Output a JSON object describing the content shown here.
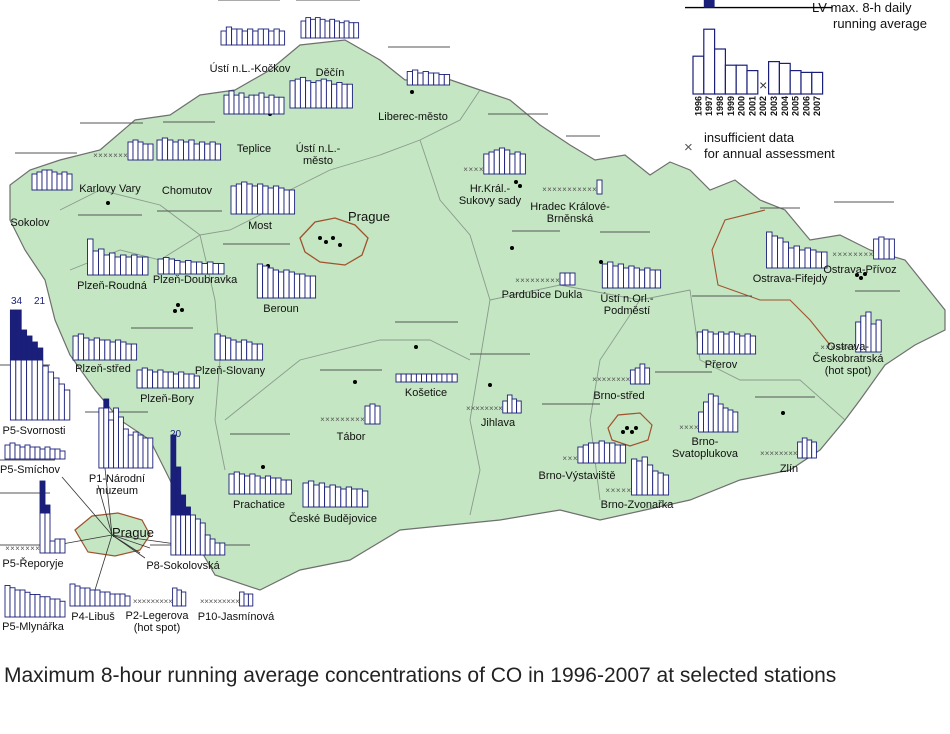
{
  "colors": {
    "land": "#c4e6c2",
    "region_border": "#8a9b8e",
    "country_border": "#6f6f6f",
    "prague_border": "#a0522d",
    "bar_outline": "#1a1f7a",
    "bar_fill_exceed": "#1a1f7a",
    "limit_line": "#000000",
    "station_dot": "#000000"
  },
  "legend": {
    "lv_label_line1": "LV max. 8-h daily",
    "lv_label_line2": "running average",
    "years": [
      "1996",
      "1997",
      "1998",
      "1999",
      "2000",
      "2001",
      "2002",
      "2003",
      "2004",
      "2005",
      "2006",
      "2007"
    ],
    "values": [
      1.05,
      1.8,
      1.25,
      0.8,
      0.8,
      0.65,
      0,
      0.9,
      0.85,
      0.65,
      0.6,
      0.6
    ],
    "insufficient_marker": "×",
    "insufficient_line1": "insufficient data",
    "insufficient_line2": "for annual assessment"
  },
  "prague_label": "Prague",
  "prague_inset_label": "Prague",
  "top_labels": {
    "exceed_34": "34",
    "exceed_21": "21",
    "exceed_20": "20"
  },
  "caption": "Maximum 8-hour running average concentrations of CO in 1996-2007 at selected stations",
  "chart_data": [
    {
      "type": "bar",
      "name": "Ústí n.L.-Kočkov",
      "categories": [
        "1996",
        "1997",
        "1998",
        "1999",
        "2000",
        "2001",
        "2002",
        "2003",
        "2004",
        "2005",
        "2006",
        "2007"
      ],
      "values": [
        0.35,
        0.45,
        0.4,
        0.4,
        0.35,
        0.4,
        0.35,
        0.4,
        0.4,
        0.35,
        0.4,
        0.35
      ]
    },
    {
      "type": "bar",
      "name": "Děčín",
      "values": [
        0.5,
        0.6,
        0.55,
        0.6,
        0.55,
        0.5,
        0.55,
        0.5,
        0.45,
        0.5,
        0.45,
        0.45
      ]
    },
    {
      "type": "bar",
      "name": "Liberec-město",
      "values": [
        0,
        0,
        0,
        0,
        0.45,
        0.5,
        0.4,
        0.45,
        0.4,
        0.4,
        0.35,
        0.35
      ]
    },
    {
      "type": "bar",
      "name": "Teplice",
      "values": [
        0.45,
        0.55,
        0.45,
        0.5,
        0.4,
        0.45,
        0.45,
        0.5,
        0.4,
        0.45,
        0.4,
        0.4
      ]
    },
    {
      "type": "bar",
      "name": "Ústí n.L.-město",
      "values": [
        0.8,
        0.85,
        0.9,
        0.8,
        0.75,
        0.8,
        0.85,
        0.8,
        0.7,
        0.75,
        0.7,
        0.7
      ]
    },
    {
      "type": "bar",
      "name": "Karlovy Vary",
      "values": [
        null,
        null,
        null,
        null,
        null,
        null,
        null,
        0.45,
        0.5,
        0.45,
        0.4,
        0.4
      ]
    },
    {
      "type": "bar",
      "name": "Chomutov",
      "values": [
        0.5,
        0.55,
        0.5,
        0.45,
        0.5,
        0.45,
        0.5,
        0.4,
        0.45,
        0.4,
        0.45,
        0.4
      ]
    },
    {
      "type": "bar",
      "name": "Sokolov",
      "values": [
        0,
        0,
        0,
        0,
        0.4,
        0.45,
        0.5,
        0.5,
        0.45,
        0.4,
        0.45,
        0.4
      ]
    },
    {
      "type": "bar",
      "name": "Most",
      "values": [
        0.7,
        0.75,
        0.8,
        0.75,
        0.7,
        0.75,
        0.7,
        0.65,
        0.7,
        0.65,
        0.6,
        0.6
      ]
    },
    {
      "type": "bar",
      "name": "Hr.Král.-Sukovy sady",
      "values": [
        null,
        null,
        null,
        null,
        0.5,
        0.55,
        0.6,
        0.65,
        0.6,
        0.5,
        0.55,
        0.5
      ]
    },
    {
      "type": "bar",
      "name": "Hradec Králové-Brněnská",
      "values": [
        null,
        null,
        null,
        null,
        null,
        null,
        null,
        null,
        null,
        null,
        null,
        0.35
      ]
    },
    {
      "type": "bar",
      "name": "Plzeň-Roudná",
      "values": [
        0,
        0.9,
        0.6,
        0.65,
        0.5,
        0.55,
        0.45,
        0.5,
        0.45,
        0.5,
        0.45,
        0.45
      ]
    },
    {
      "type": "bar",
      "name": "Plzeň-Doubravka",
      "values": [
        0.5,
        0.55,
        0.5,
        0.45,
        0.4,
        0.45,
        0.4,
        0.4,
        0.35,
        0.4,
        0.35,
        0.35
      ]
    },
    {
      "type": "bar",
      "name": "Beroun",
      "values": [
        0,
        0.85,
        0.8,
        0.75,
        0.7,
        0.65,
        0.7,
        0.65,
        0.6,
        0.6,
        0.55,
        0.55
      ]
    },
    {
      "type": "bar",
      "name": "Pardubice Dukla",
      "values": [
        null,
        null,
        null,
        null,
        null,
        null,
        null,
        null,
        null,
        0.3,
        0.3,
        0.3
      ]
    },
    {
      "type": "bar",
      "name": "Ústí n.Orl.-Podměstí",
      "values": [
        0,
        0.6,
        0.65,
        0.55,
        0.6,
        0.5,
        0.55,
        0.5,
        0.45,
        0.5,
        0.45,
        0.45
      ]
    },
    {
      "type": "bar",
      "name": "Ostrava-Fifejdy",
      "values": [
        0,
        0.9,
        0.8,
        0.75,
        0.65,
        0.5,
        0.55,
        0.45,
        0.5,
        0.45,
        0.4,
        0.4
      ]
    },
    {
      "type": "bar",
      "name": "Ostrava-Přívoz",
      "values": [
        null,
        null,
        null,
        null,
        null,
        null,
        null,
        null,
        0.5,
        0.55,
        0.5,
        0.5
      ]
    },
    {
      "type": "bar",
      "name": "Plzeň-střed",
      "values": [
        0.6,
        0.65,
        0.55,
        0.5,
        0.55,
        0.5,
        0.5,
        0.45,
        0.5,
        0.45,
        0.4,
        0.4
      ]
    },
    {
      "type": "bar",
      "name": "Plzeň-Slovany",
      "values": [
        0,
        0,
        0,
        0.65,
        0.6,
        0.55,
        0.5,
        0.45,
        0.5,
        0.45,
        0.4,
        0.4
      ]
    },
    {
      "type": "bar",
      "name": "Plzeň-Bory",
      "values": [
        0.45,
        0.5,
        0.45,
        0.4,
        0.45,
        0.4,
        0.4,
        0.35,
        0.4,
        0.35,
        0.35,
        0.3
      ]
    },
    {
      "type": "bar",
      "name": "Košetice",
      "values": [
        0.2,
        0.2,
        0.2,
        0.2,
        0.2,
        0.2,
        0.2,
        0.2,
        0.2,
        0.2,
        0.2,
        0.2
      ]
    },
    {
      "type": "bar",
      "name": "Přerov",
      "values": [
        0,
        0.55,
        0.6,
        0.55,
        0.5,
        0.55,
        0.5,
        0.55,
        0.5,
        0.45,
        0.5,
        0.45
      ]
    },
    {
      "type": "bar",
      "name": "Ostrava-Českobratrská (hot spot)",
      "values": [
        null,
        null,
        null,
        null,
        null,
        null,
        null,
        0.75,
        0.9,
        1.0,
        0.7,
        0.8
      ]
    },
    {
      "type": "bar",
      "name": "Brno-střed",
      "values": [
        null,
        null,
        null,
        null,
        null,
        null,
        null,
        null,
        0.35,
        0.4,
        0.5,
        0.4
      ]
    },
    {
      "type": "bar",
      "name": "Tábor",
      "values": [
        null,
        null,
        null,
        null,
        null,
        null,
        null,
        null,
        null,
        0.45,
        0.5,
        0.45
      ]
    },
    {
      "type": "bar",
      "name": "Jihlava",
      "values": [
        null,
        null,
        null,
        null,
        null,
        null,
        null,
        null,
        0.3,
        0.45,
        0.35,
        0.3
      ]
    },
    {
      "type": "bar",
      "name": "Brno-Svatoplukova",
      "values": [
        null,
        null,
        null,
        null,
        0.5,
        0.75,
        0.95,
        0.9,
        0.7,
        0.6,
        0.55,
        0.5
      ]
    },
    {
      "type": "bar",
      "name": "Brno-Výstaviště",
      "values": [
        null,
        null,
        null,
        0.4,
        0.45,
        0.5,
        0.5,
        0.55,
        0.5,
        0.5,
        0.45,
        0.45
      ]
    },
    {
      "type": "bar",
      "name": "Brno-Zvonařka",
      "values": [
        null,
        null,
        null,
        null,
        null,
        0.9,
        0.85,
        0.95,
        0.75,
        0.6,
        0.55,
        0.5
      ]
    },
    {
      "type": "bar",
      "name": "Zlín",
      "values": [
        null,
        null,
        null,
        null,
        null,
        null,
        null,
        null,
        0.4,
        0.5,
        0.45,
        0.4
      ]
    },
    {
      "type": "bar",
      "name": "Prachatice",
      "values": [
        0.5,
        0.55,
        0.5,
        0.45,
        0.5,
        0.45,
        0.4,
        0.45,
        0.4,
        0.4,
        0.35,
        0.35
      ]
    },
    {
      "type": "bar",
      "name": "České Budějovice",
      "values": [
        0.6,
        0.65,
        0.55,
        0.6,
        0.5,
        0.55,
        0.5,
        0.45,
        0.5,
        0.45,
        0.45,
        0.4
      ]
    },
    {
      "type": "bar",
      "name": "P5-Svornosti",
      "values": [
        0,
        34,
        21,
        1.5,
        1.4,
        1.3,
        1.2,
        0.9,
        0.8,
        0.7,
        0.6,
        0.5
      ]
    },
    {
      "type": "bar",
      "name": "P1-Národní muzeum",
      "values": [
        0,
        1.0,
        1.15,
        0.8,
        1.0,
        0.85,
        0.65,
        0.55,
        0.6,
        0.55,
        0.5,
        0.5
      ]
    },
    {
      "type": "bar",
      "name": "P5-Smíchov",
      "values": [
        0.35,
        0.4,
        0.35,
        0.3,
        0.35,
        0.3,
        0.3,
        0.25,
        0.3,
        0.25,
        0.25,
        0.2
      ]
    },
    {
      "type": "bar",
      "name": "P5-Řeporyje",
      "values": [
        null,
        null,
        null,
        null,
        null,
        null,
        null,
        1.8,
        1.2,
        0.3,
        0.35,
        0.35
      ]
    },
    {
      "type": "bar",
      "name": "P8-Sokolovská",
      "values": [
        0,
        20,
        2.2,
        1.5,
        1.2,
        1.0,
        0.9,
        0.8,
        0.5,
        0.4,
        0.3,
        0.3
      ]
    },
    {
      "type": "bar",
      "name": "P5-Mlynářka",
      "values": [
        0.7,
        0.65,
        0.6,
        0.6,
        0.55,
        0.5,
        0.5,
        0.45,
        0.45,
        0.4,
        0.4,
        0.35
      ]
    },
    {
      "type": "bar",
      "name": "P4-Libuš",
      "values": [
        0.55,
        0.5,
        0.45,
        0.45,
        0.4,
        0.4,
        0.35,
        0.35,
        0.3,
        0.3,
        0.3,
        0.25
      ]
    },
    {
      "type": "bar",
      "name": "P2-Legerova (hot spot)",
      "values": [
        null,
        null,
        null,
        null,
        null,
        null,
        null,
        null,
        null,
        0.45,
        0.4,
        0.35
      ]
    },
    {
      "type": "bar",
      "name": "P10-Jasmínová",
      "values": [
        null,
        null,
        null,
        null,
        null,
        null,
        null,
        null,
        null,
        0.35,
        0.3,
        0.3
      ]
    }
  ]
}
